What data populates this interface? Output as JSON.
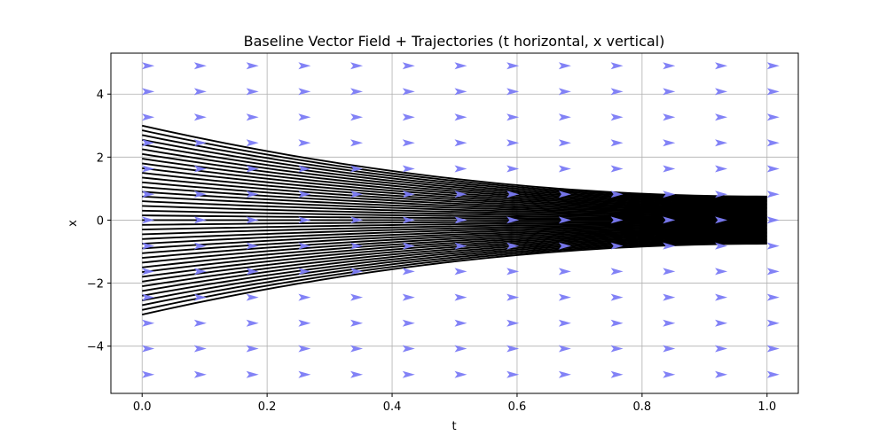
{
  "chart_data": {
    "type": "line",
    "title": "Baseline Vector Field + Trajectories (t horizontal, x vertical)",
    "xlabel": "t",
    "ylabel": "x",
    "xlim": [
      -0.05,
      1.05
    ],
    "ylim": [
      -5.5,
      5.3
    ],
    "xticks": [
      0.0,
      0.2,
      0.4,
      0.6,
      0.8,
      1.0
    ],
    "xtick_labels": [
      "0.0",
      "0.2",
      "0.4",
      "0.6",
      "0.8",
      "1.0"
    ],
    "yticks": [
      -4,
      -2,
      0,
      2,
      4
    ],
    "ytick_labels": [
      "−4",
      "−2",
      "0",
      "2",
      "4"
    ],
    "grid": true,
    "colors": {
      "trajectory": "#000000",
      "vector_arrow": "#7b7bf6",
      "grid": "#b0b0b0",
      "axes": "#000000"
    },
    "vector_field": {
      "t_points": [
        0.0,
        0.0833,
        0.1667,
        0.25,
        0.3333,
        0.4167,
        0.5,
        0.5833,
        0.6667,
        0.75,
        0.8333,
        0.9167,
        1.0
      ],
      "x_points": [
        -4.9,
        -4.08,
        -3.27,
        -2.45,
        -1.63,
        -0.82,
        0.0,
        0.82,
        1.63,
        2.45,
        3.27,
        4.08,
        4.9
      ],
      "direction": "+t"
    },
    "trajectories": {
      "count": 41,
      "start_x_range": [
        -3.0,
        3.0
      ],
      "end_x_range": [
        -0.75,
        0.75
      ],
      "t_range": [
        0.0,
        1.0
      ]
    }
  }
}
